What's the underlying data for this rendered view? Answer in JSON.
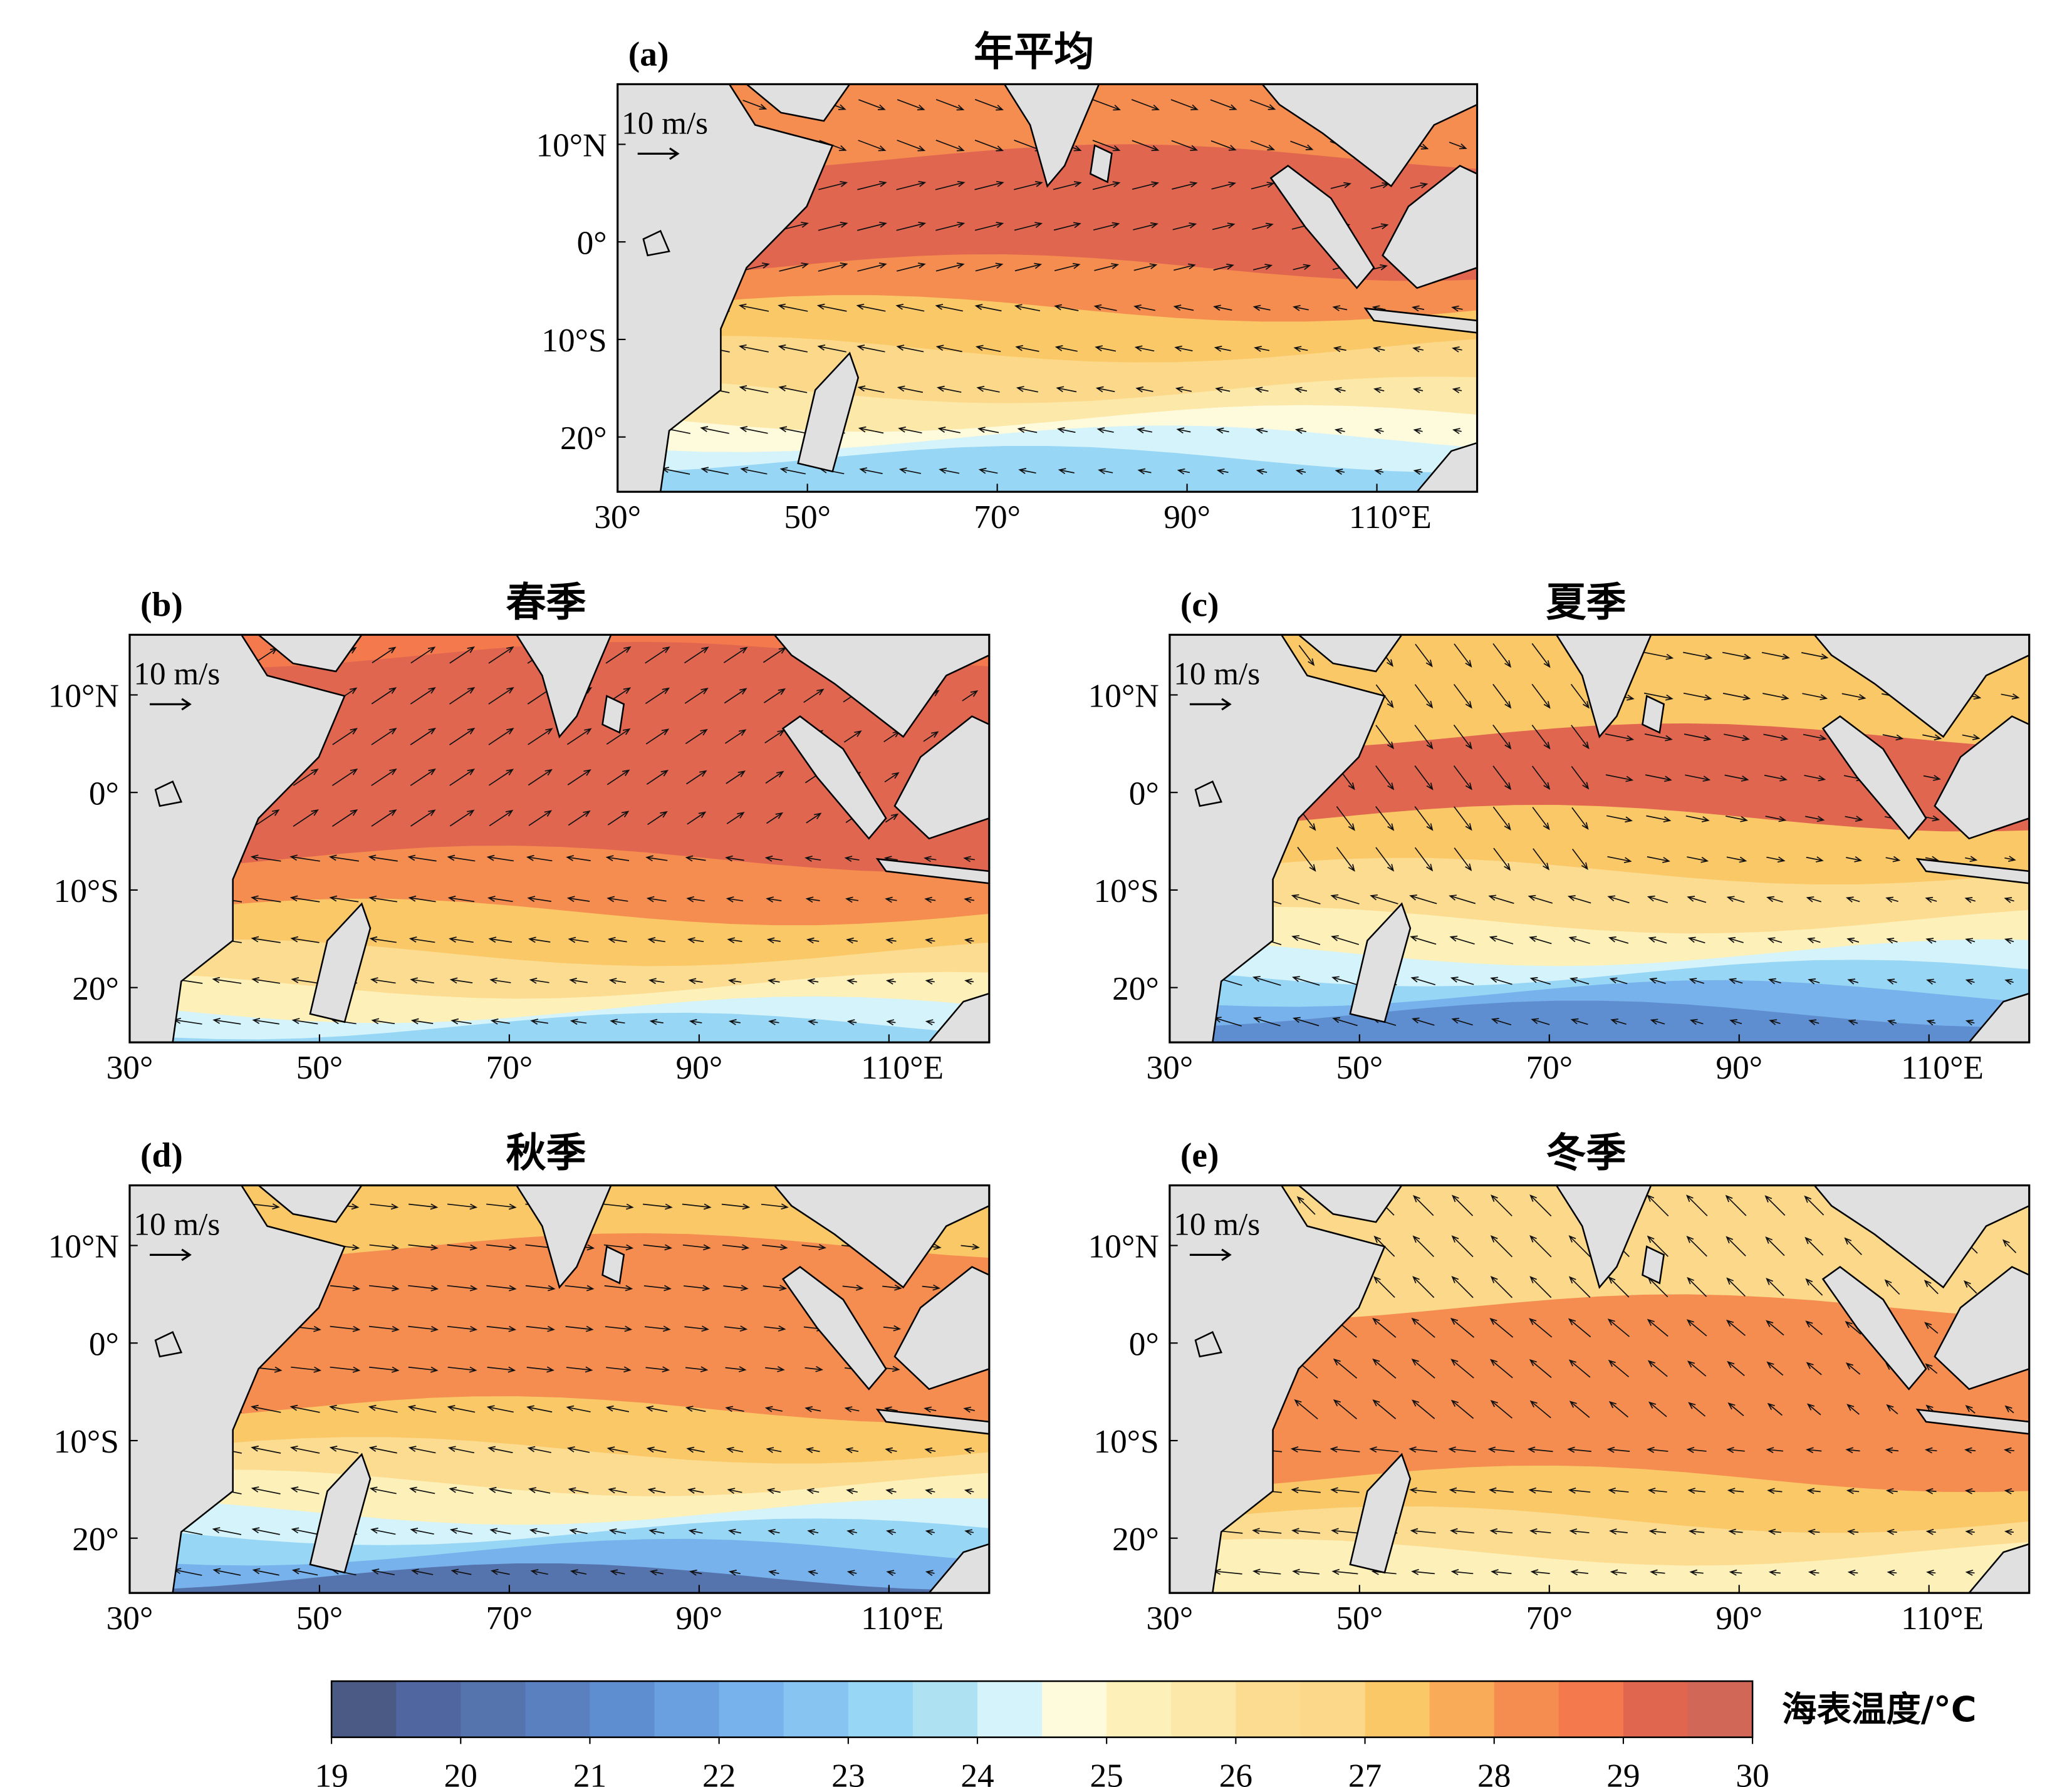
{
  "panels": [
    {
      "label": "(a)",
      "title": "年平均",
      "scale_label": "10 m/s",
      "lon_labels": [
        "30°",
        "50°",
        "70°",
        "90°",
        "110°E"
      ],
      "lat_labels": [
        "10°N",
        "0°",
        "10°S",
        "20°"
      ]
    },
    {
      "label": "(b)",
      "title": "春季",
      "scale_label": "10 m/s",
      "lon_labels": [
        "30°",
        "50°",
        "70°",
        "90°",
        "110°E"
      ],
      "lat_labels": [
        "10°N",
        "0°",
        "10°S",
        "20°"
      ]
    },
    {
      "label": "(c)",
      "title": "夏季",
      "scale_label": "10 m/s",
      "lon_labels": [
        "30°",
        "50°",
        "70°",
        "90°",
        "110°E"
      ],
      "lat_labels": [
        "10°N",
        "0°",
        "10°S",
        "20°"
      ]
    },
    {
      "label": "(d)",
      "title": "秋季",
      "scale_label": "10 m/s",
      "lon_labels": [
        "30°",
        "50°",
        "70°",
        "90°",
        "110°E"
      ],
      "lat_labels": [
        "10°N",
        "0°",
        "10°S",
        "20°"
      ]
    },
    {
      "label": "(e)",
      "title": "冬季",
      "scale_label": "10 m/s",
      "lon_labels": [
        "30°",
        "50°",
        "70°",
        "90°",
        "110°E"
      ],
      "lat_labels": [
        "10°N",
        "0°",
        "10°S",
        "20°"
      ]
    }
  ],
  "colorbar": {
    "label": "海表温度/°C",
    "ticks": [
      19,
      20,
      21,
      22,
      23,
      24,
      25,
      26,
      27,
      28,
      29,
      30
    ],
    "colors": [
      "#4a5a85",
      "#5066a0",
      "#5573ad",
      "#5a80bf",
      "#5f8ed0",
      "#6aa0e0",
      "#78b2ec",
      "#88c4f2",
      "#98d6f5",
      "#aee2f2",
      "#d4f3fa",
      "#fefadc",
      "#fdf0b8",
      "#fce8a8",
      "#fbdc90",
      "#fcd98a",
      "#fbc868",
      "#f9ab58",
      "#f58c50",
      "#f47a4e",
      "#e06650",
      "#d16857"
    ]
  }
}
